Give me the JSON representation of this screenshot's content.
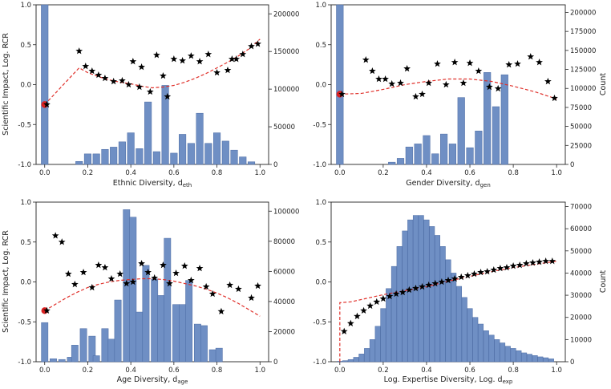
{
  "colors": {
    "hist_fill": "#6f8fc4",
    "hist_stroke": "#4a6aa3",
    "trend": "#e0302a",
    "start_dot": "#d92020",
    "star": "#000000",
    "axis": "#222222",
    "grid": "#e6e6e6"
  },
  "chart_data": [
    {
      "type": "bar",
      "xlabel": "Ethnic Diversity, d",
      "xlabel_sub": "eth",
      "ylabel_left": "Scientific Impact, Log. RCR",
      "ylabel_right": "",
      "x_ticks": [
        "0.0",
        "0.2",
        "0.4",
        "0.6",
        "0.8",
        "1.0"
      ],
      "y_ticks": [
        "-1.0",
        "-0.5",
        "0.0",
        "0.5",
        "1.0"
      ],
      "right_ticks": [
        "0",
        "50000",
        "100000",
        "150000",
        "200000"
      ],
      "xlim": [
        -0.04,
        1.04
      ],
      "ylim": [
        -1.0,
        1.0
      ],
      "right_ylim": [
        0,
        212000
      ],
      "bin_width": 0.032,
      "bars": [
        [
          0.0,
          212000
        ],
        [
          0.16,
          4000
        ],
        [
          0.2,
          14000
        ],
        [
          0.24,
          14000
        ],
        [
          0.28,
          20000
        ],
        [
          0.32,
          23000
        ],
        [
          0.36,
          30000
        ],
        [
          0.4,
          42000
        ],
        [
          0.44,
          21000
        ],
        [
          0.48,
          83000
        ],
        [
          0.52,
          17000
        ],
        [
          0.56,
          105000
        ],
        [
          0.6,
          15000
        ],
        [
          0.64,
          40000
        ],
        [
          0.68,
          28000
        ],
        [
          0.72,
          68000
        ],
        [
          0.76,
          28000
        ],
        [
          0.8,
          42000
        ],
        [
          0.84,
          31000
        ],
        [
          0.88,
          19000
        ],
        [
          0.92,
          10000
        ],
        [
          0.96,
          3500
        ]
      ],
      "stars": [
        [
          0.01,
          -0.25
        ],
        [
          0.16,
          0.42
        ],
        [
          0.19,
          0.23
        ],
        [
          0.22,
          0.17
        ],
        [
          0.25,
          0.12
        ],
        [
          0.28,
          0.08
        ],
        [
          0.32,
          0.04
        ],
        [
          0.36,
          0.05
        ],
        [
          0.39,
          0.0
        ],
        [
          0.41,
          0.29
        ],
        [
          0.44,
          -0.03
        ],
        [
          0.45,
          0.22
        ],
        [
          0.49,
          -0.09
        ],
        [
          0.52,
          0.37
        ],
        [
          0.55,
          0.11
        ],
        [
          0.57,
          -0.15
        ],
        [
          0.6,
          0.32
        ],
        [
          0.64,
          0.3
        ],
        [
          0.68,
          0.36
        ],
        [
          0.72,
          0.29
        ],
        [
          0.76,
          0.38
        ],
        [
          0.8,
          0.15
        ],
        [
          0.85,
          0.18
        ],
        [
          0.87,
          0.32
        ],
        [
          0.89,
          0.32
        ],
        [
          0.92,
          0.38
        ],
        [
          0.96,
          0.48
        ],
        [
          0.99,
          0.51
        ]
      ],
      "trend": [
        [
          0.0,
          -0.25
        ],
        [
          0.16,
          0.21
        ],
        [
          0.2,
          0.15
        ],
        [
          0.25,
          0.1
        ],
        [
          0.3,
          0.06
        ],
        [
          0.35,
          0.03
        ],
        [
          0.4,
          0.01
        ],
        [
          0.45,
          -0.02
        ],
        [
          0.5,
          -0.04
        ],
        [
          0.55,
          -0.03
        ],
        [
          0.6,
          -0.01
        ],
        [
          0.65,
          0.03
        ],
        [
          0.7,
          0.08
        ],
        [
          0.75,
          0.14
        ],
        [
          0.8,
          0.21
        ],
        [
          0.85,
          0.28
        ],
        [
          0.9,
          0.36
        ],
        [
          0.95,
          0.45
        ],
        [
          1.0,
          0.57
        ]
      ],
      "start_point": [
        0.0,
        -0.25
      ]
    },
    {
      "type": "bar",
      "xlabel": "Gender Diversity, d",
      "xlabel_sub": "gen",
      "ylabel_left": "",
      "ylabel_right": "Count",
      "x_ticks": [
        "0.0",
        "0.2",
        "0.4",
        "0.6",
        "0.8",
        "1.0"
      ],
      "y_ticks": [
        "-1.0",
        "-0.5",
        "0.0",
        "0.5",
        "1.0"
      ],
      "right_ticks": [
        "0",
        "25000",
        "50000",
        "75000",
        "100000",
        "125000",
        "150000",
        "175000",
        "200000"
      ],
      "xlim": [
        -0.04,
        1.04
      ],
      "ylim": [
        -1.0,
        1.0
      ],
      "right_ylim": [
        0,
        210000
      ],
      "bin_width": 0.032,
      "bars": [
        [
          0.0,
          210000
        ],
        [
          0.24,
          3000
        ],
        [
          0.28,
          8000
        ],
        [
          0.32,
          23000
        ],
        [
          0.36,
          27000
        ],
        [
          0.4,
          38000
        ],
        [
          0.44,
          14000
        ],
        [
          0.48,
          40000
        ],
        [
          0.52,
          27000
        ],
        [
          0.56,
          88000
        ],
        [
          0.6,
          22000
        ],
        [
          0.64,
          44000
        ],
        [
          0.68,
          121000
        ],
        [
          0.72,
          76000
        ],
        [
          0.76,
          118000
        ]
      ],
      "stars": [
        [
          0.01,
          -0.12
        ],
        [
          0.12,
          0.31
        ],
        [
          0.15,
          0.17
        ],
        [
          0.18,
          0.07
        ],
        [
          0.21,
          0.07
        ],
        [
          0.24,
          0.01
        ],
        [
          0.28,
          0.02
        ],
        [
          0.31,
          0.2
        ],
        [
          0.35,
          -0.15
        ],
        [
          0.38,
          -0.12
        ],
        [
          0.41,
          0.02
        ],
        [
          0.45,
          0.26
        ],
        [
          0.49,
          0.0
        ],
        [
          0.53,
          0.28
        ],
        [
          0.57,
          0.02
        ],
        [
          0.6,
          0.27
        ],
        [
          0.64,
          0.17
        ],
        [
          0.69,
          -0.03
        ],
        [
          0.73,
          -0.05
        ],
        [
          0.78,
          0.25
        ],
        [
          0.82,
          0.26
        ],
        [
          0.88,
          0.35
        ],
        [
          0.92,
          0.28
        ],
        [
          0.96,
          0.04
        ],
        [
          0.99,
          -0.17
        ]
      ],
      "trend": [
        [
          0.0,
          -0.12
        ],
        [
          0.1,
          -0.11
        ],
        [
          0.2,
          -0.06
        ],
        [
          0.3,
          0.0
        ],
        [
          0.4,
          0.04
        ],
        [
          0.5,
          0.07
        ],
        [
          0.6,
          0.07
        ],
        [
          0.7,
          0.04
        ],
        [
          0.8,
          -0.02
        ],
        [
          0.9,
          -0.09
        ],
        [
          1.0,
          -0.18
        ]
      ],
      "start_point": [
        0.0,
        -0.12
      ]
    },
    {
      "type": "bar",
      "xlabel": "Age Diversity, d",
      "xlabel_sub": "age",
      "ylabel_left": "Scientific Impact, Log. RCR",
      "ylabel_right": "",
      "x_ticks": [
        "0.0",
        "0.2",
        "0.4",
        "0.6",
        "0.8",
        "1.0"
      ],
      "y_ticks": [
        "-1.0",
        "-0.5",
        "0.0",
        "0.5",
        "1.0"
      ],
      "right_ticks": [
        "0",
        "20000",
        "40000",
        "60000",
        "80000",
        "100000"
      ],
      "xlim": [
        -0.04,
        1.04
      ],
      "ylim": [
        -1.0,
        1.0
      ],
      "right_ylim": [
        0,
        106000
      ],
      "bin_width": 0.031,
      "bars": [
        [
          0.0,
          26000
        ],
        [
          0.04,
          2000
        ],
        [
          0.08,
          1500
        ],
        [
          0.12,
          3000
        ],
        [
          0.14,
          11000
        ],
        [
          0.18,
          22000
        ],
        [
          0.22,
          17000
        ],
        [
          0.24,
          4000
        ],
        [
          0.28,
          22000
        ],
        [
          0.31,
          15000
        ],
        [
          0.34,
          41000
        ],
        [
          0.38,
          101000
        ],
        [
          0.41,
          96000
        ],
        [
          0.44,
          33000
        ],
        [
          0.47,
          64000
        ],
        [
          0.51,
          55000
        ],
        [
          0.54,
          44000
        ],
        [
          0.57,
          82000
        ],
        [
          0.61,
          38000
        ],
        [
          0.64,
          38000
        ],
        [
          0.67,
          54000
        ],
        [
          0.71,
          25000
        ],
        [
          0.74,
          24000
        ],
        [
          0.78,
          8000
        ],
        [
          0.81,
          9000
        ]
      ],
      "stars": [
        [
          0.01,
          -0.36
        ],
        [
          0.05,
          0.58
        ],
        [
          0.08,
          0.5
        ],
        [
          0.11,
          0.1
        ],
        [
          0.14,
          -0.03
        ],
        [
          0.18,
          0.12
        ],
        [
          0.22,
          -0.07
        ],
        [
          0.25,
          0.21
        ],
        [
          0.28,
          0.18
        ],
        [
          0.31,
          0.04
        ],
        [
          0.35,
          0.1
        ],
        [
          0.38,
          -0.02
        ],
        [
          0.41,
          0.0
        ],
        [
          0.45,
          0.23
        ],
        [
          0.48,
          0.12
        ],
        [
          0.51,
          0.05
        ],
        [
          0.55,
          0.21
        ],
        [
          0.58,
          -0.02
        ],
        [
          0.61,
          0.11
        ],
        [
          0.65,
          0.2
        ],
        [
          0.68,
          0.02
        ],
        [
          0.72,
          0.17
        ],
        [
          0.75,
          -0.06
        ],
        [
          0.78,
          -0.15
        ],
        [
          0.82,
          -0.37
        ],
        [
          0.86,
          -0.04
        ],
        [
          0.9,
          -0.09
        ],
        [
          0.96,
          -0.2
        ],
        [
          0.99,
          -0.05
        ]
      ],
      "trend": [
        [
          0.0,
          -0.36
        ],
        [
          0.05,
          -0.28
        ],
        [
          0.1,
          -0.2
        ],
        [
          0.15,
          -0.13
        ],
        [
          0.2,
          -0.07
        ],
        [
          0.25,
          -0.03
        ],
        [
          0.3,
          0.0
        ],
        [
          0.35,
          0.02
        ],
        [
          0.4,
          0.03
        ],
        [
          0.45,
          0.04
        ],
        [
          0.5,
          0.04
        ],
        [
          0.55,
          0.03
        ],
        [
          0.6,
          0.01
        ],
        [
          0.65,
          -0.02
        ],
        [
          0.7,
          -0.05
        ],
        [
          0.75,
          -0.09
        ],
        [
          0.8,
          -0.14
        ],
        [
          0.85,
          -0.2
        ],
        [
          0.9,
          -0.27
        ],
        [
          0.95,
          -0.35
        ],
        [
          1.0,
          -0.43
        ]
      ],
      "start_point": [
        0.0,
        -0.36
      ]
    },
    {
      "type": "bar",
      "xlabel": "Log. Expertise Diversity, Log. d",
      "xlabel_sub": "exp",
      "ylabel_left": "",
      "ylabel_right": "Count",
      "x_ticks": [
        "0.0",
        "0.2",
        "0.4",
        "0.6",
        "0.8",
        "1.0"
      ],
      "y_ticks": [
        "-1.0",
        "-0.5",
        "0.0",
        "0.5",
        "1.0"
      ],
      "right_ticks": [
        "0",
        "10000",
        "20000",
        "30000",
        "40000",
        "50000",
        "60000",
        "70000"
      ],
      "xlim": [
        -0.04,
        1.04
      ],
      "ylim": [
        -1.0,
        1.0
      ],
      "right_ylim": [
        0,
        72000
      ],
      "bin_width": 0.024,
      "bars": [
        [
          0.0,
          200
        ],
        [
          0.025,
          500
        ],
        [
          0.05,
          1000
        ],
        [
          0.075,
          2000
        ],
        [
          0.1,
          3500
        ],
        [
          0.125,
          6000
        ],
        [
          0.15,
          10000
        ],
        [
          0.175,
          16000
        ],
        [
          0.2,
          24000
        ],
        [
          0.225,
          33000
        ],
        [
          0.25,
          43000
        ],
        [
          0.275,
          52000
        ],
        [
          0.3,
          59000
        ],
        [
          0.325,
          64000
        ],
        [
          0.35,
          66000
        ],
        [
          0.375,
          66000
        ],
        [
          0.4,
          64000
        ],
        [
          0.425,
          61000
        ],
        [
          0.45,
          57000
        ],
        [
          0.475,
          52000
        ],
        [
          0.5,
          46000
        ],
        [
          0.525,
          40000
        ],
        [
          0.55,
          34000
        ],
        [
          0.575,
          29000
        ],
        [
          0.6,
          24000
        ],
        [
          0.625,
          20000
        ],
        [
          0.65,
          17000
        ],
        [
          0.675,
          14000
        ],
        [
          0.7,
          12000
        ],
        [
          0.725,
          10000
        ],
        [
          0.75,
          8500
        ],
        [
          0.775,
          7000
        ],
        [
          0.8,
          6000
        ],
        [
          0.825,
          5000
        ],
        [
          0.85,
          4000
        ],
        [
          0.875,
          3400
        ],
        [
          0.9,
          2800
        ],
        [
          0.925,
          2200
        ],
        [
          0.95,
          1800
        ],
        [
          0.975,
          1300
        ]
      ],
      "stars": [
        [
          0.02,
          -0.62
        ],
        [
          0.05,
          -0.52
        ],
        [
          0.08,
          -0.43
        ],
        [
          0.11,
          -0.36
        ],
        [
          0.14,
          -0.3
        ],
        [
          0.17,
          -0.25
        ],
        [
          0.2,
          -0.21
        ],
        [
          0.23,
          -0.18
        ],
        [
          0.26,
          -0.15
        ],
        [
          0.29,
          -0.13
        ],
        [
          0.32,
          -0.1
        ],
        [
          0.35,
          -0.08
        ],
        [
          0.38,
          -0.06
        ],
        [
          0.41,
          -0.04
        ],
        [
          0.44,
          -0.02
        ],
        [
          0.47,
          0.0
        ],
        [
          0.5,
          0.02
        ],
        [
          0.53,
          0.04
        ],
        [
          0.56,
          0.06
        ],
        [
          0.59,
          0.08
        ],
        [
          0.62,
          0.1
        ],
        [
          0.65,
          0.12
        ],
        [
          0.68,
          0.13
        ],
        [
          0.71,
          0.15
        ],
        [
          0.74,
          0.17
        ],
        [
          0.77,
          0.18
        ],
        [
          0.8,
          0.2
        ],
        [
          0.83,
          0.21
        ],
        [
          0.86,
          0.23
        ],
        [
          0.89,
          0.24
        ],
        [
          0.92,
          0.25
        ],
        [
          0.95,
          0.26
        ],
        [
          0.98,
          0.26
        ]
      ],
      "trend": [
        [
          0.0,
          -1.0
        ],
        [
          0.0,
          -0.26
        ],
        [
          0.05,
          -0.25
        ],
        [
          0.1,
          -0.22
        ],
        [
          0.15,
          -0.19
        ],
        [
          0.2,
          -0.16
        ],
        [
          0.3,
          -0.11
        ],
        [
          0.4,
          -0.06
        ],
        [
          0.5,
          0.01
        ],
        [
          0.6,
          0.07
        ],
        [
          0.7,
          0.13
        ],
        [
          0.8,
          0.18
        ],
        [
          0.9,
          0.22
        ],
        [
          1.0,
          0.26
        ]
      ],
      "start_point": null
    }
  ]
}
